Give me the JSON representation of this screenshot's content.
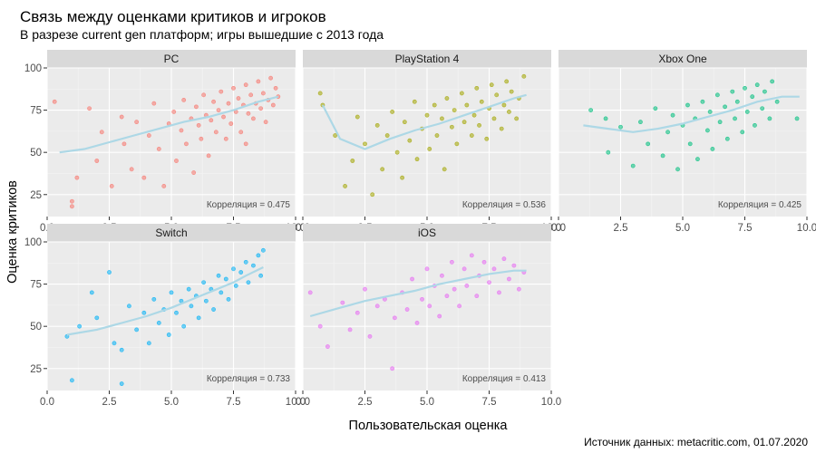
{
  "chart_data": {
    "type": "scatter",
    "title": "Связь между оценками критиков и игроков",
    "subtitle": "В разрезе current gen платформ; игры вышедшие с 2013 года",
    "xlabel": "Пользовательская оценка",
    "ylabel": "Оценка критиков",
    "caption": "Источник данных: metacritic.com, 01.07.2020",
    "xlim": [
      0,
      10
    ],
    "ylim": [
      12,
      100
    ],
    "x_ticks": [
      0,
      2.5,
      5,
      7.5,
      10
    ],
    "x_tick_labels": [
      "0.0",
      "2.5",
      "5.0",
      "7.5",
      "10.0"
    ],
    "y_ticks": [
      25,
      50,
      75,
      100
    ],
    "y_tick_labels": [
      "25",
      "50",
      "75",
      "100"
    ],
    "grid": true,
    "legend": "none",
    "facets": [
      {
        "name": "PC",
        "color": "#F8766D",
        "annotation": "Корреляция = 0.475",
        "smooth": [
          [
            0.5,
            50
          ],
          [
            1.5,
            52
          ],
          [
            2.5,
            56
          ],
          [
            3.5,
            60
          ],
          [
            4.5,
            64
          ],
          [
            5.5,
            68
          ],
          [
            6.5,
            71
          ],
          [
            7.5,
            75
          ],
          [
            8.5,
            80
          ],
          [
            9.3,
            83
          ]
        ],
        "points": [
          [
            0.3,
            80
          ],
          [
            1.0,
            21
          ],
          [
            1.0,
            18
          ],
          [
            1.2,
            35
          ],
          [
            1.7,
            76
          ],
          [
            2.0,
            45
          ],
          [
            2.2,
            62
          ],
          [
            2.6,
            30
          ],
          [
            3.0,
            71
          ],
          [
            3.1,
            55
          ],
          [
            3.4,
            40
          ],
          [
            3.6,
            68
          ],
          [
            3.9,
            35
          ],
          [
            4.1,
            60
          ],
          [
            4.3,
            79
          ],
          [
            4.5,
            52
          ],
          [
            4.7,
            30
          ],
          [
            4.9,
            67
          ],
          [
            5.1,
            74
          ],
          [
            5.2,
            45
          ],
          [
            5.4,
            63
          ],
          [
            5.5,
            81
          ],
          [
            5.6,
            55
          ],
          [
            5.8,
            70
          ],
          [
            5.9,
            38
          ],
          [
            6.0,
            77
          ],
          [
            6.1,
            66
          ],
          [
            6.2,
            58
          ],
          [
            6.3,
            84
          ],
          [
            6.4,
            72
          ],
          [
            6.5,
            48
          ],
          [
            6.6,
            69
          ],
          [
            6.7,
            80
          ],
          [
            6.8,
            62
          ],
          [
            6.9,
            75
          ],
          [
            7.0,
            86
          ],
          [
            7.1,
            71
          ],
          [
            7.2,
            58
          ],
          [
            7.3,
            79
          ],
          [
            7.4,
            67
          ],
          [
            7.5,
            88
          ],
          [
            7.6,
            74
          ],
          [
            7.7,
            82
          ],
          [
            7.8,
            62
          ],
          [
            7.9,
            78
          ],
          [
            8.0,
            90
          ],
          [
            8.1,
            73
          ],
          [
            8.2,
            84
          ],
          [
            8.3,
            70
          ],
          [
            8.4,
            79
          ],
          [
            8.5,
            92
          ],
          [
            8.6,
            76
          ],
          [
            8.7,
            85
          ],
          [
            8.8,
            68
          ],
          [
            8.9,
            81
          ],
          [
            9.0,
            94
          ],
          [
            9.1,
            78
          ],
          [
            9.2,
            88
          ],
          [
            9.3,
            83
          ],
          [
            8.0,
            55
          ]
        ]
      },
      {
        "name": "PlayStation 4",
        "color": "#A3A500",
        "annotation": "Корреляция = 0.536",
        "smooth": [
          [
            0.8,
            78
          ],
          [
            1.5,
            58
          ],
          [
            2.5,
            52
          ],
          [
            3.5,
            58
          ],
          [
            4.5,
            63
          ],
          [
            5.5,
            67
          ],
          [
            6.5,
            72
          ],
          [
            7.5,
            77
          ],
          [
            8.5,
            82
          ],
          [
            9.0,
            84
          ]
        ],
        "points": [
          [
            0.7,
            85
          ],
          [
            0.8,
            78
          ],
          [
            1.3,
            60
          ],
          [
            1.7,
            30
          ],
          [
            2.0,
            45
          ],
          [
            2.2,
            71
          ],
          [
            2.5,
            55
          ],
          [
            2.8,
            25
          ],
          [
            3.0,
            66
          ],
          [
            3.2,
            40
          ],
          [
            3.4,
            60
          ],
          [
            3.6,
            74
          ],
          [
            3.8,
            50
          ],
          [
            4.0,
            35
          ],
          [
            4.1,
            68
          ],
          [
            4.3,
            57
          ],
          [
            4.5,
            80
          ],
          [
            4.6,
            46
          ],
          [
            4.8,
            64
          ],
          [
            5.0,
            72
          ],
          [
            5.1,
            52
          ],
          [
            5.3,
            78
          ],
          [
            5.4,
            60
          ],
          [
            5.6,
            70
          ],
          [
            5.7,
            40
          ],
          [
            5.8,
            82
          ],
          [
            6.0,
            65
          ],
          [
            6.1,
            75
          ],
          [
            6.2,
            55
          ],
          [
            6.4,
            85
          ],
          [
            6.5,
            68
          ],
          [
            6.6,
            78
          ],
          [
            6.8,
            60
          ],
          [
            6.9,
            72
          ],
          [
            7.0,
            88
          ],
          [
            7.1,
            66
          ],
          [
            7.2,
            80
          ],
          [
            7.4,
            58
          ],
          [
            7.5,
            76
          ],
          [
            7.6,
            90
          ],
          [
            7.7,
            70
          ],
          [
            7.8,
            84
          ],
          [
            8.0,
            64
          ],
          [
            8.1,
            78
          ],
          [
            8.2,
            92
          ],
          [
            8.3,
            74
          ],
          [
            8.4,
            86
          ],
          [
            8.6,
            70
          ],
          [
            8.7,
            82
          ],
          [
            8.9,
            95
          ]
        ]
      },
      {
        "name": "Xbox One",
        "color": "#00BF7D",
        "annotation": "Корреляция = 0.425",
        "smooth": [
          [
            1.0,
            66
          ],
          [
            2.0,
            64
          ],
          [
            3.0,
            62
          ],
          [
            4.0,
            64
          ],
          [
            5.0,
            67
          ],
          [
            6.0,
            71
          ],
          [
            7.0,
            75
          ],
          [
            8.0,
            80
          ],
          [
            9.0,
            83
          ],
          [
            9.7,
            83
          ]
        ],
        "points": [
          [
            1.3,
            75
          ],
          [
            1.9,
            70
          ],
          [
            2.0,
            50
          ],
          [
            2.5,
            65
          ],
          [
            3.0,
            42
          ],
          [
            3.3,
            68
          ],
          [
            3.6,
            55
          ],
          [
            3.9,
            76
          ],
          [
            4.2,
            48
          ],
          [
            4.4,
            62
          ],
          [
            4.6,
            72
          ],
          [
            4.8,
            40
          ],
          [
            5.0,
            66
          ],
          [
            5.2,
            78
          ],
          [
            5.3,
            55
          ],
          [
            5.5,
            70
          ],
          [
            5.6,
            46
          ],
          [
            5.8,
            80
          ],
          [
            6.0,
            63
          ],
          [
            6.1,
            74
          ],
          [
            6.2,
            52
          ],
          [
            6.4,
            84
          ],
          [
            6.5,
            68
          ],
          [
            6.7,
            77
          ],
          [
            6.8,
            58
          ],
          [
            7.0,
            86
          ],
          [
            7.1,
            70
          ],
          [
            7.2,
            80
          ],
          [
            7.4,
            62
          ],
          [
            7.5,
            88
          ],
          [
            7.6,
            74
          ],
          [
            7.8,
            83
          ],
          [
            7.9,
            66
          ],
          [
            8.0,
            90
          ],
          [
            8.2,
            76
          ],
          [
            8.3,
            86
          ],
          [
            8.5,
            70
          ],
          [
            8.6,
            92
          ],
          [
            8.8,
            80
          ],
          [
            9.6,
            70
          ]
        ]
      },
      {
        "name": "Switch",
        "color": "#00B0F6",
        "annotation": "Корреляция = 0.733",
        "smooth": [
          [
            0.8,
            45
          ],
          [
            2.0,
            48
          ],
          [
            3.0,
            52
          ],
          [
            4.0,
            56
          ],
          [
            5.0,
            61
          ],
          [
            6.0,
            67
          ],
          [
            7.0,
            73
          ],
          [
            7.5,
            76
          ],
          [
            8.0,
            80
          ],
          [
            8.7,
            85
          ]
        ],
        "points": [
          [
            0.8,
            44
          ],
          [
            1.0,
            18
          ],
          [
            1.3,
            50
          ],
          [
            1.8,
            70
          ],
          [
            2.0,
            55
          ],
          [
            2.5,
            82
          ],
          [
            2.7,
            40
          ],
          [
            3.0,
            36
          ],
          [
            3.0,
            16
          ],
          [
            3.3,
            62
          ],
          [
            3.6,
            48
          ],
          [
            3.9,
            58
          ],
          [
            4.1,
            40
          ],
          [
            4.3,
            66
          ],
          [
            4.5,
            52
          ],
          [
            4.7,
            60
          ],
          [
            4.9,
            45
          ],
          [
            5.0,
            70
          ],
          [
            5.2,
            58
          ],
          [
            5.4,
            65
          ],
          [
            5.5,
            50
          ],
          [
            5.7,
            72
          ],
          [
            5.8,
            62
          ],
          [
            6.0,
            68
          ],
          [
            6.1,
            55
          ],
          [
            6.3,
            76
          ],
          [
            6.4,
            65
          ],
          [
            6.6,
            72
          ],
          [
            6.7,
            60
          ],
          [
            6.9,
            80
          ],
          [
            7.0,
            70
          ],
          [
            7.2,
            78
          ],
          [
            7.3,
            66
          ],
          [
            7.5,
            84
          ],
          [
            7.6,
            74
          ],
          [
            7.8,
            82
          ],
          [
            8.0,
            88
          ],
          [
            8.1,
            76
          ],
          [
            8.3,
            86
          ],
          [
            8.5,
            92
          ],
          [
            8.6,
            80
          ],
          [
            8.7,
            95
          ]
        ]
      },
      {
        "name": "iOS",
        "color": "#E76BF3",
        "annotation": "Корреляция = 0.413",
        "smooth": [
          [
            0.3,
            56
          ],
          [
            1.5,
            61
          ],
          [
            2.5,
            65
          ],
          [
            3.5,
            68
          ],
          [
            4.5,
            71
          ],
          [
            5.5,
            75
          ],
          [
            6.5,
            78
          ],
          [
            7.5,
            81
          ],
          [
            8.5,
            83
          ],
          [
            9.0,
            83
          ]
        ],
        "points": [
          [
            0.3,
            70
          ],
          [
            0.7,
            50
          ],
          [
            1.0,
            38
          ],
          [
            1.6,
            64
          ],
          [
            1.9,
            48
          ],
          [
            2.2,
            58
          ],
          [
            2.5,
            72
          ],
          [
            2.7,
            44
          ],
          [
            3.0,
            62
          ],
          [
            3.3,
            66
          ],
          [
            3.6,
            25
          ],
          [
            3.7,
            55
          ],
          [
            4.0,
            70
          ],
          [
            4.2,
            60
          ],
          [
            4.4,
            78
          ],
          [
            4.6,
            52
          ],
          [
            4.8,
            66
          ],
          [
            5.0,
            84
          ],
          [
            5.1,
            62
          ],
          [
            5.3,
            74
          ],
          [
            5.5,
            56
          ],
          [
            5.6,
            80
          ],
          [
            5.8,
            68
          ],
          [
            6.0,
            88
          ],
          [
            6.1,
            72
          ],
          [
            6.3,
            62
          ],
          [
            6.5,
            84
          ],
          [
            6.6,
            74
          ],
          [
            6.8,
            92
          ],
          [
            7.0,
            68
          ],
          [
            7.1,
            80
          ],
          [
            7.3,
            88
          ],
          [
            7.5,
            76
          ],
          [
            7.7,
            84
          ],
          [
            7.9,
            70
          ],
          [
            8.1,
            90
          ],
          [
            8.3,
            78
          ],
          [
            8.5,
            86
          ],
          [
            8.7,
            72
          ],
          [
            8.9,
            82
          ]
        ]
      }
    ]
  }
}
